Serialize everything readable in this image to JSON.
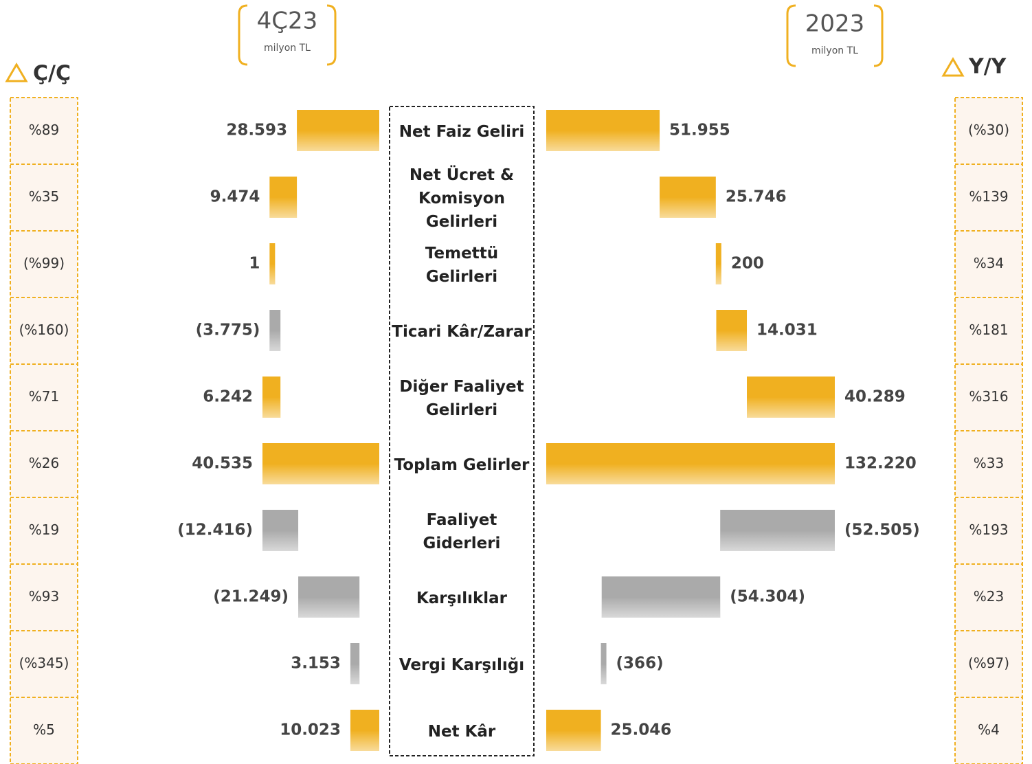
{
  "chart_data": [
    {
      "type": "waterfall",
      "title": "4Ç23",
      "subtitle": "milyon TL",
      "categories": [
        "Net Faiz Geliri",
        "Net Ücret & Komisyon Gelirleri",
        "Temettü Gelirleri",
        "Ticari Kâr/Zarar",
        "Diğer Faaliyet Gelirleri",
        "Toplam Gelirler",
        "Faaliyet Giderleri",
        "Karşılıklar",
        "Vergi Karşılığı",
        "Net Kâr"
      ],
      "values": [
        28593,
        9474,
        1,
        -3775,
        6242,
        40535,
        -12416,
        -21249,
        3153,
        10023
      ],
      "value_labels": [
        "28.593",
        "9.474",
        "1",
        "(3.775)",
        "6.242",
        "40.535",
        "(12.416)",
        "(21.249)",
        "3.153",
        "10.023"
      ],
      "total_indices": [
        5,
        9
      ],
      "colors": [
        "#f0b020",
        "#f0b020",
        "#f0b020",
        "#aaaaaa",
        "#f0b020",
        "#f0b020",
        "#aaaaaa",
        "#aaaaaa",
        "#aaaaaa",
        "#f0b020"
      ],
      "change_title": "Ç/Ç",
      "changes": [
        89,
        35,
        -99,
        -160,
        71,
        26,
        19,
        93,
        -345,
        5
      ],
      "change_labels": [
        "%89",
        "%35",
        "(%99)",
        "(%160)",
        "%71",
        "%26",
        "%19",
        "%93",
        "(%345)",
        "%5"
      ]
    },
    {
      "type": "waterfall",
      "title": "2023",
      "subtitle": "milyon TL",
      "values": [
        51955,
        25746,
        200,
        14031,
        40289,
        132220,
        -52505,
        -54304,
        -366,
        25046
      ],
      "value_labels": [
        "51.955",
        "25.746",
        "200",
        "14.031",
        "40.289",
        "132.220",
        "(52.505)",
        "(54.304)",
        "(366)",
        "25.046"
      ],
      "total_indices": [
        5,
        9
      ],
      "colors": [
        "#f0b020",
        "#f0b020",
        "#f0b020",
        "#f0b020",
        "#f0b020",
        "#f0b020",
        "#aaaaaa",
        "#aaaaaa",
        "#aaaaaa",
        "#f0b020"
      ],
      "change_title": "Y/Y",
      "changes": [
        -30,
        139,
        34,
        181,
        316,
        33,
        193,
        23,
        -97,
        4
      ],
      "change_labels": [
        "(%30)",
        "%139",
        "%34",
        "%181",
        "%316",
        "%33",
        "%193",
        "%23",
        "(%97)",
        "%4"
      ]
    }
  ]
}
